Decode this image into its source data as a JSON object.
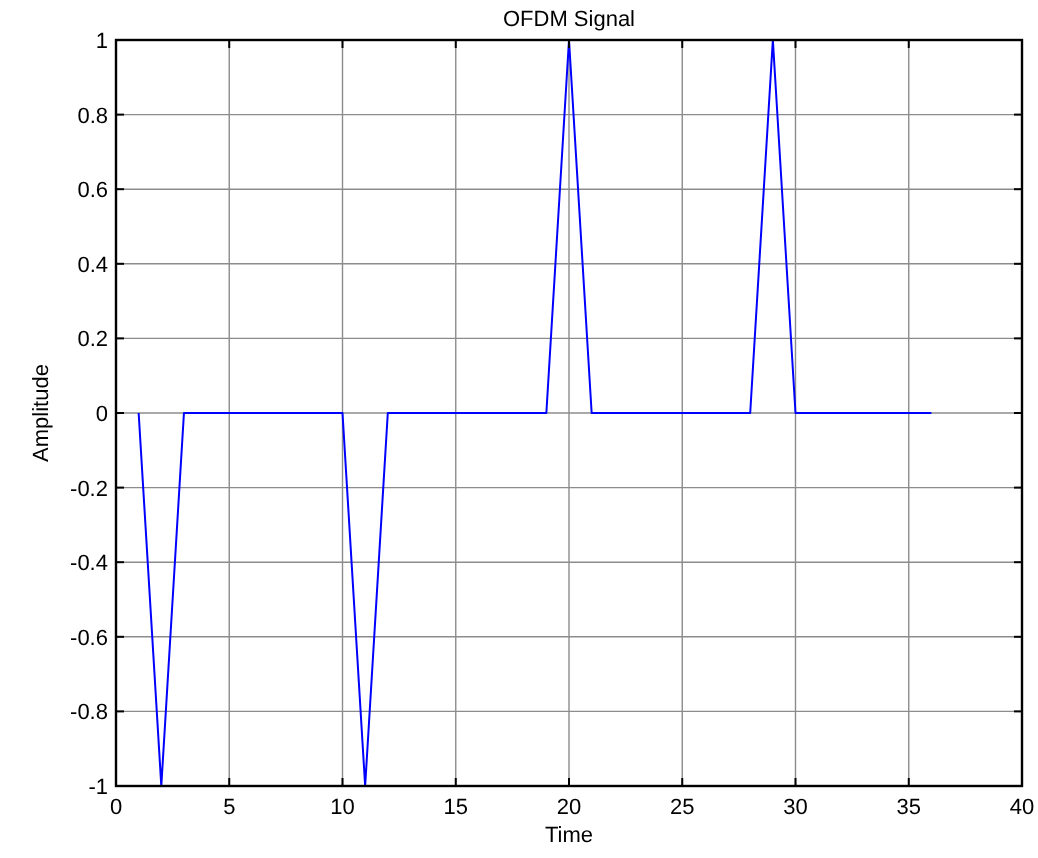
{
  "chart_data": {
    "type": "line",
    "title": "OFDM Signal",
    "xlabel": "Time",
    "ylabel": "Amplitude",
    "x": [
      1,
      2,
      3,
      4,
      5,
      6,
      7,
      8,
      9,
      10,
      11,
      12,
      13,
      14,
      15,
      16,
      17,
      18,
      19,
      20,
      21,
      22,
      23,
      24,
      25,
      26,
      27,
      28,
      29,
      30,
      31,
      32,
      33,
      34,
      35,
      36
    ],
    "series": [
      {
        "color": "#0000ff",
        "values": [
          0,
          -1,
          0,
          0,
          0,
          0,
          0,
          0,
          0,
          0,
          -1,
          0,
          0,
          0,
          0,
          0,
          0,
          0,
          0,
          1,
          0,
          0,
          0,
          0,
          0,
          0,
          0,
          0,
          1,
          0,
          0,
          0,
          0,
          0,
          0,
          0
        ]
      }
    ],
    "xlim": [
      0,
      40
    ],
    "xticks": [
      0,
      5,
      10,
      15,
      20,
      25,
      30,
      35,
      40
    ],
    "ylim": [
      -1,
      1
    ],
    "yticks": [
      -1,
      -0.8,
      -0.6,
      -0.4,
      -0.2,
      0,
      0.2,
      0.4,
      0.6,
      0.8,
      1
    ],
    "grid": true,
    "marker": "none",
    "line_style": "solid"
  }
}
